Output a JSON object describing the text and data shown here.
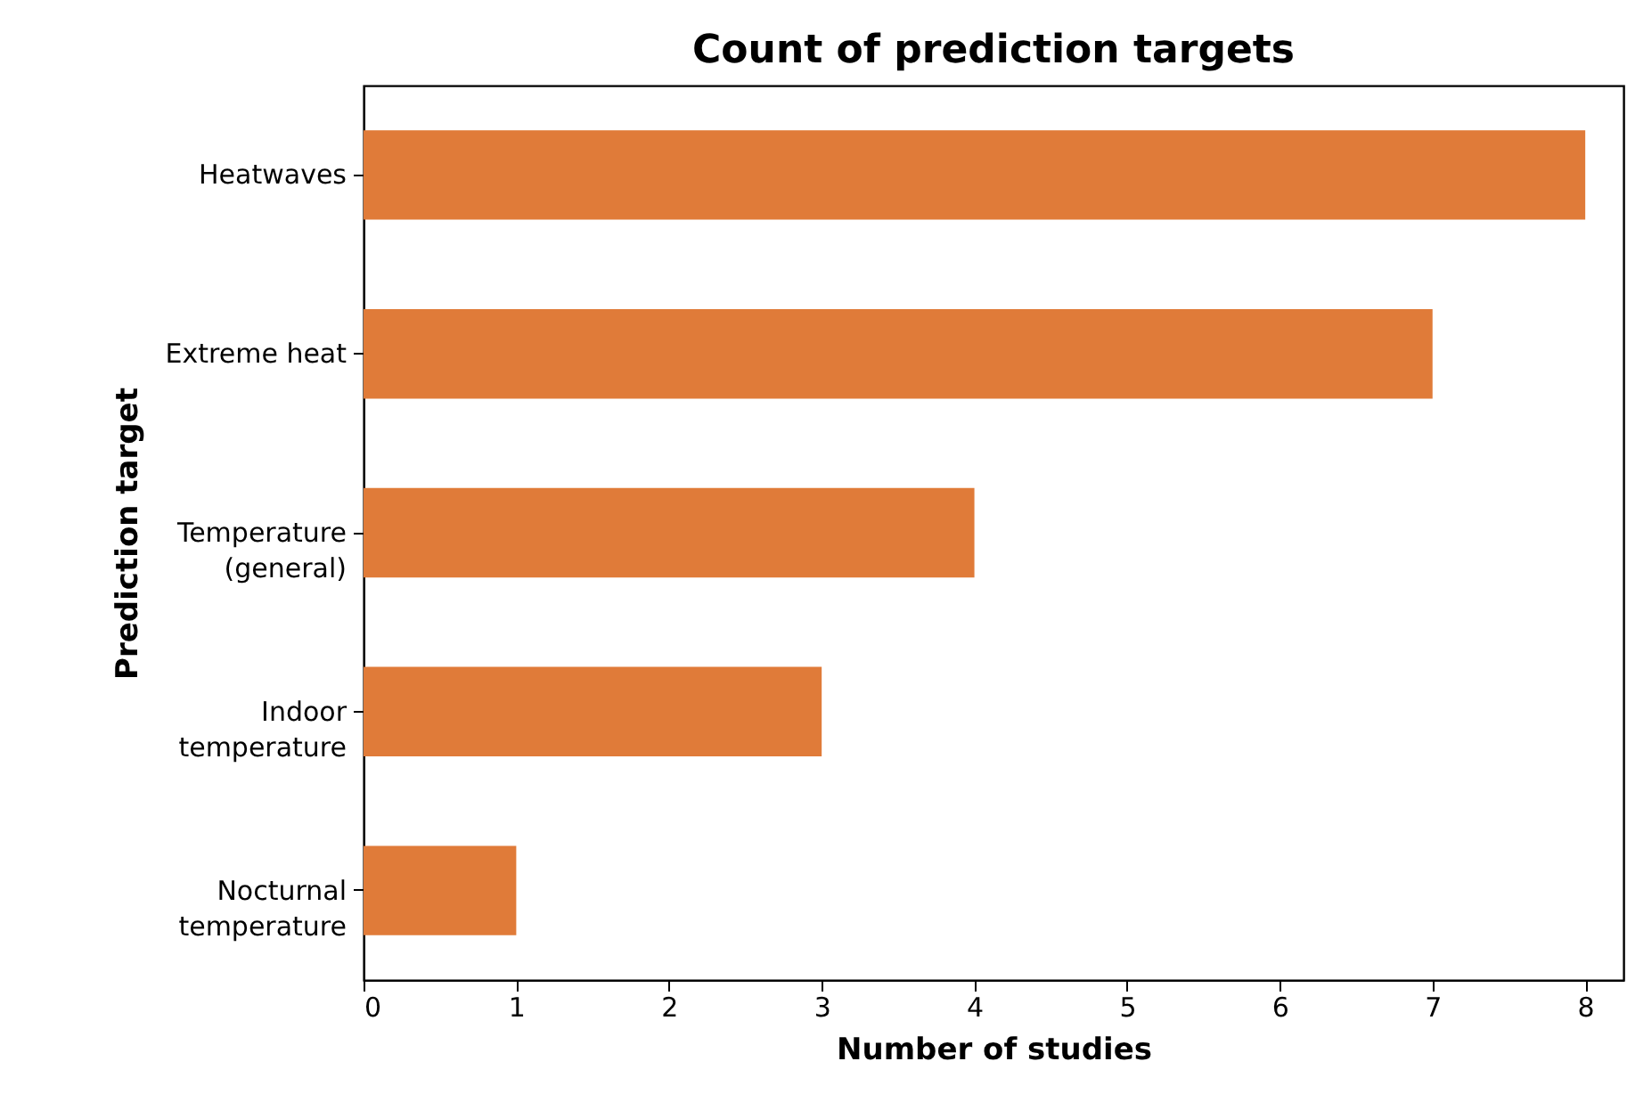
{
  "chart_data": {
    "type": "bar",
    "orientation": "horizontal",
    "title": "Count of prediction targets",
    "xlabel": "Number of studies",
    "ylabel": "Prediction target",
    "categories": [
      "Heatwaves",
      "Extreme heat",
      "Temperature\n(general)",
      "Indoor\ntemperature",
      "Nocturnal\ntemperature"
    ],
    "values": [
      8,
      7,
      4,
      3,
      1
    ],
    "color": "#e07b39",
    "xlim": [
      0,
      8.25
    ],
    "xticks": [
      0,
      1,
      2,
      3,
      4,
      5,
      6,
      7,
      8
    ],
    "grid": false
  }
}
